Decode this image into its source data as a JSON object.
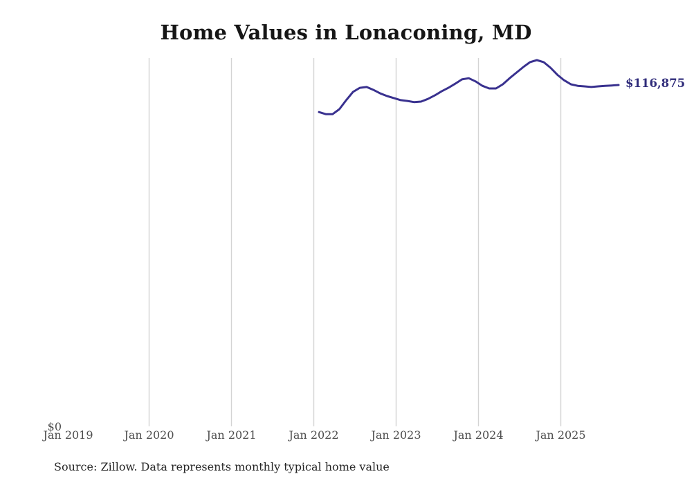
{
  "title": "Home Values in Lonaconing, MD",
  "source_note": "Source: Zillow. Data represents monthly typical home value",
  "y_axis": {
    "zero_label": "$0"
  },
  "latest_value_label": "$116,875",
  "colors": {
    "background": "#ffffff",
    "title_text": "#161616",
    "line": "#39318f",
    "latest_label": "#2f2b7a",
    "gridline": "#d4d4d4",
    "tick_text": "#4d4d4d",
    "source_text": "#262626"
  },
  "chart_data": {
    "type": "line",
    "title": "Home Values in Lonaconing, MD",
    "xlabel": "",
    "ylabel": "",
    "ylim": [
      0,
      126000
    ],
    "grid": "vertical yearly gridlines, no horizontal grid, y axis starts at $0",
    "legend_position": "none",
    "x_tick_labels": [
      "Jan 2019",
      "Jan 2020",
      "Jan 2021",
      "Jan 2022",
      "Jan 2023",
      "Jan 2024",
      "Jan 2025"
    ],
    "series": [
      {
        "name": "Monthly typical home value",
        "x": [
          "2022-01",
          "2022-02",
          "2022-03",
          "2022-04",
          "2022-05",
          "2022-06",
          "2022-07",
          "2022-08",
          "2022-09",
          "2022-10",
          "2022-11",
          "2022-12",
          "2023-01",
          "2023-02",
          "2023-03",
          "2023-04",
          "2023-05",
          "2023-06",
          "2023-07",
          "2023-08",
          "2023-09",
          "2023-10",
          "2023-11",
          "2023-12",
          "2024-01",
          "2024-02",
          "2024-03",
          "2024-04",
          "2024-05",
          "2024-06",
          "2024-07",
          "2024-08",
          "2024-09",
          "2024-10",
          "2024-11",
          "2024-12",
          "2025-01",
          "2025-02",
          "2025-03",
          "2025-04",
          "2025-05",
          "2025-06",
          "2025-07",
          "2025-08",
          "2025-09"
        ],
        "values": [
          107600,
          106900,
          106900,
          108600,
          111700,
          114500,
          115900,
          116200,
          115200,
          114000,
          113100,
          112400,
          111700,
          111400,
          111000,
          111200,
          112100,
          113300,
          114700,
          115900,
          117300,
          118800,
          119200,
          118100,
          116600,
          115700,
          115700,
          117100,
          119200,
          121100,
          123000,
          124700,
          125400,
          124700,
          122800,
          120400,
          118500,
          117100,
          116600,
          116400,
          116200,
          116400,
          116600,
          116700,
          116875
        ]
      }
    ],
    "annotations": [
      {
        "text": "$116,875",
        "attached_to": "last point of series"
      }
    ]
  }
}
